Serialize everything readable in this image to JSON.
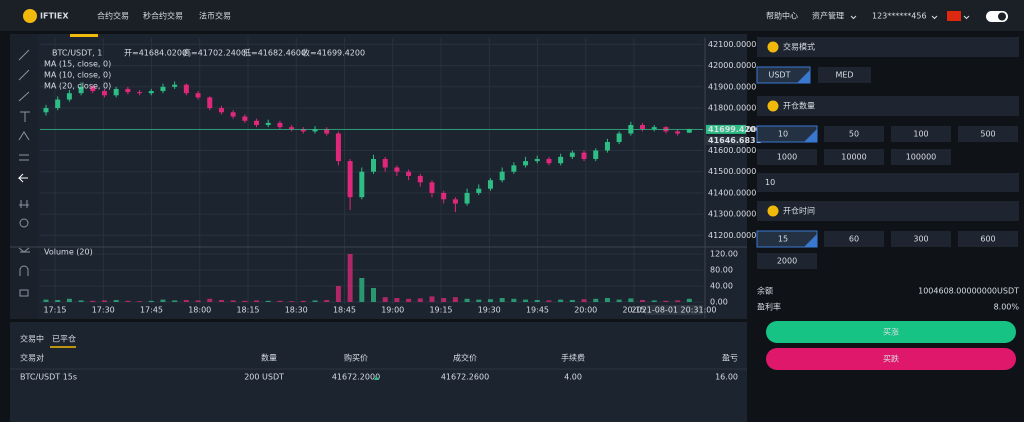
{
  "nav": {
    "logo": "IFTIEX",
    "links": [
      "合约交易",
      "秒合约交易",
      "法币交易"
    ],
    "active": 1,
    "right": [
      "帮助中心",
      "资产管理",
      "123******456"
    ]
  },
  "chart_data": {
    "type": "candlestick",
    "symbol": "BTC/USDT, 1",
    "ohlc_labels": [
      "开=41684.0200",
      "高=41702.2400",
      "低=41682.4600",
      "收=41699.4200"
    ],
    "indicators": [
      "MA (15, close, 0)",
      "MA (10, close, 0)",
      "MA (20, close, 0)"
    ],
    "volume_title": "Volume (20)",
    "up_color": "#2ebd85",
    "down_color": "#e0287a",
    "candles": [
      [
        41780,
        41815,
        41765,
        41800
      ],
      [
        41800,
        41855,
        41790,
        41840
      ],
      [
        41840,
        41885,
        41830,
        41870
      ],
      [
        41870,
        41920,
        41860,
        41900
      ],
      [
        41900,
        41910,
        41870,
        41880
      ],
      [
        41880,
        41890,
        41850,
        41860
      ],
      [
        41860,
        41900,
        41850,
        41890
      ],
      [
        41890,
        41900,
        41865,
        41875
      ],
      [
        41875,
        41885,
        41860,
        41870
      ],
      [
        41870,
        41890,
        41860,
        41880
      ],
      [
        41880,
        41915,
        41870,
        41900
      ],
      [
        41900,
        41925,
        41890,
        41910
      ],
      [
        41910,
        41915,
        41860,
        41870
      ],
      [
        41870,
        41880,
        41840,
        41850
      ],
      [
        41850,
        41855,
        41790,
        41800
      ],
      [
        41800,
        41810,
        41770,
        41780
      ],
      [
        41780,
        41790,
        41750,
        41760
      ],
      [
        41760,
        41770,
        41730,
        41740
      ],
      [
        41740,
        41750,
        41710,
        41720
      ],
      [
        41720,
        41745,
        41710,
        41730
      ],
      [
        41730,
        41740,
        41700,
        41710
      ],
      [
        41710,
        41720,
        41690,
        41700
      ],
      [
        41700,
        41710,
        41680,
        41690
      ],
      [
        41690,
        41715,
        41680,
        41700
      ],
      [
        41700,
        41710,
        41670,
        41680
      ],
      [
        41680,
        41690,
        41530,
        41550
      ],
      [
        41550,
        41560,
        41320,
        41380
      ],
      [
        41380,
        41520,
        41370,
        41500
      ],
      [
        41500,
        41580,
        41490,
        41560
      ],
      [
        41560,
        41570,
        41500,
        41520
      ],
      [
        41520,
        41530,
        41480,
        41500
      ],
      [
        41500,
        41510,
        41460,
        41480
      ],
      [
        41480,
        41490,
        41430,
        41450
      ],
      [
        41450,
        41460,
        41380,
        41400
      ],
      [
        41400,
        41410,
        41350,
        41370
      ],
      [
        41370,
        41380,
        41310,
        41350
      ],
      [
        41350,
        41420,
        41340,
        41400
      ],
      [
        41400,
        41440,
        41390,
        41420
      ],
      [
        41420,
        41470,
        41410,
        41460
      ],
      [
        41460,
        41520,
        41450,
        41500
      ],
      [
        41500,
        41545,
        41490,
        41530
      ],
      [
        41530,
        41570,
        41520,
        41550
      ],
      [
        41550,
        41575,
        41540,
        41560
      ],
      [
        41560,
        41570,
        41530,
        41540
      ],
      [
        41540,
        41585,
        41530,
        41570
      ],
      [
        41570,
        41600,
        41560,
        41590
      ],
      [
        41590,
        41600,
        41550,
        41560
      ],
      [
        41560,
        41610,
        41550,
        41600
      ],
      [
        41600,
        41655,
        41590,
        41640
      ],
      [
        41640,
        41690,
        41630,
        41680
      ],
      [
        41680,
        41735,
        41670,
        41720
      ],
      [
        41720,
        41730,
        41690,
        41700
      ],
      [
        41700,
        41720,
        41690,
        41710
      ],
      [
        41710,
        41715,
        41680,
        41690
      ],
      [
        41690,
        41700,
        41670,
        41680
      ],
      [
        41684.02,
        41702.24,
        41682.46,
        41699.42
      ]
    ],
    "volumes": [
      6,
      5,
      8,
      4,
      3,
      4,
      5,
      3,
      2,
      3,
      6,
      4,
      5,
      4,
      8,
      5,
      4,
      3,
      4,
      3,
      3,
      2,
      3,
      4,
      5,
      40,
      120,
      60,
      35,
      12,
      10,
      8,
      9,
      14,
      10,
      12,
      8,
      6,
      7,
      10,
      8,
      6,
      5,
      4,
      6,
      5,
      7,
      8,
      10,
      6,
      9,
      5,
      4,
      3,
      4,
      8
    ],
    "ylim": [
      41150,
      42130
    ],
    "yticks": [
      {
        "value": 42100,
        "label": "42100.0000"
      },
      {
        "value": 42000,
        "label": "42000.0000"
      },
      {
        "value": 41900,
        "label": "41900.0000"
      },
      {
        "value": 41800,
        "label": "41800.0000"
      },
      {
        "value": 41700,
        "label": "41700.0000"
      },
      {
        "value": 41600,
        "label": "41600.0000"
      },
      {
        "value": 41500,
        "label": "41500.0000"
      },
      {
        "value": 41400,
        "label": "41400.0000"
      },
      {
        "value": 41300,
        "label": "41300.0000"
      },
      {
        "value": 41200,
        "label": "41200.0000"
      }
    ],
    "price_markers": [
      {
        "value": 41699.42,
        "label": "41699.4200",
        "color": "#2ebd85"
      },
      {
        "value": 41646.6831,
        "label": "41646.6831",
        "color": "#2c3440"
      }
    ],
    "volume_ylim": [
      0,
      130
    ],
    "volume_yticks": [
      {
        "value": 120,
        "label": "120.00"
      },
      {
        "value": 80,
        "label": "80.00"
      },
      {
        "value": 40,
        "label": "40.00"
      },
      {
        "value": 0,
        "label": "0.00"
      }
    ],
    "time_labels": [
      "17:15",
      "17:30",
      "17:45",
      "18:00",
      "18:15",
      "18:30",
      "18:45",
      "19:00",
      "19:15",
      "19:30",
      "19:45",
      "20:00",
      "20:15"
    ],
    "cursor_time": "2021-08-01 20:31:00"
  },
  "orders": {
    "tabs": [
      "交易中",
      "已平仓"
    ],
    "active": 1,
    "headers": [
      "交易对",
      "数量",
      "购买价",
      "成交价",
      "手续费",
      "盈亏"
    ],
    "rows": [
      [
        "BTC/USDT 15s",
        "200 USDT",
        "41672.2000",
        "41672.2600",
        "4.00",
        "16.00"
      ]
    ]
  },
  "trade": {
    "mode_title": "交易模式",
    "modes": [
      "USDT",
      "MED"
    ],
    "amount_title": "开仓数量",
    "amounts": [
      "10",
      "50",
      "100",
      "500",
      "1000",
      "10000",
      "100000"
    ],
    "amount_input": "10",
    "time_title": "开仓时间",
    "times": [
      "15",
      "60",
      "300",
      "600",
      "2000"
    ],
    "balance_label": "余额",
    "balance": "1004608.00000000USDT",
    "profit_label": "盈利率",
    "profit": "8.00%",
    "buy_up": "买涨",
    "buy_down": "买跌"
  }
}
